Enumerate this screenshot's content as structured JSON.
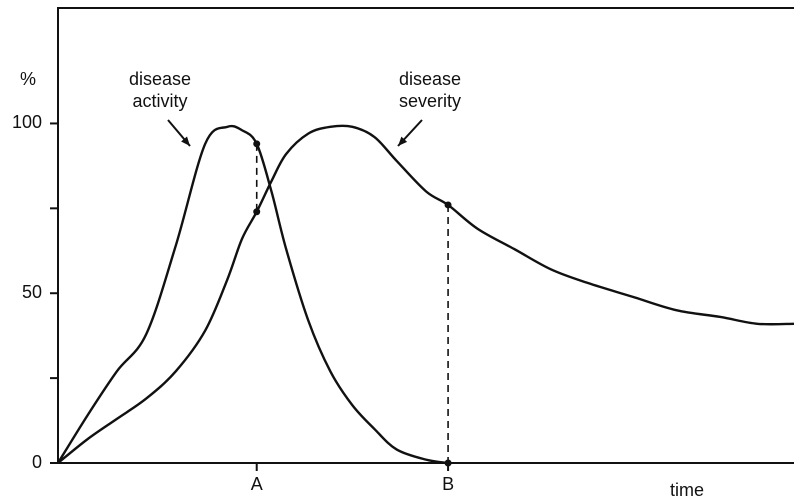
{
  "chart_data": {
    "type": "line",
    "y_label": "%",
    "x_label": "time",
    "x": [
      0,
      4,
      8,
      12,
      16,
      20,
      23,
      25,
      27,
      29,
      31,
      34,
      37,
      40,
      43,
      46,
      50,
      53,
      57,
      62,
      67,
      72,
      78,
      84,
      90,
      95,
      100
    ],
    "series": [
      {
        "name": "disease activity",
        "color": "#111111",
        "values": [
          0,
          14,
          27,
          38,
          64,
          94,
          99,
          98,
          94,
          80,
          63,
          42,
          27,
          17,
          10,
          4,
          1,
          0,
          null,
          null,
          null,
          null,
          null,
          null,
          null,
          null,
          null
        ]
      },
      {
        "name": "disease severity",
        "color": "#111111",
        "values": [
          0,
          7,
          13,
          19,
          27,
          39,
          54,
          66,
          74,
          83,
          91,
          97,
          99,
          99,
          96,
          89,
          80,
          76,
          69,
          63,
          57,
          53,
          49,
          45,
          43,
          41,
          41
        ]
      }
    ],
    "annotations": [
      {
        "lines": [
          "disease",
          "activity"
        ],
        "series": 0
      },
      {
        "lines": [
          "disease",
          "severity"
        ],
        "series": 1
      }
    ],
    "xlim": [
      0,
      100
    ],
    "xticks": [
      {
        "value": 27,
        "label": "A"
      },
      {
        "value": 53,
        "label": "B"
      }
    ],
    "ylim": [
      0,
      134
    ],
    "yticks": [
      0,
      50,
      100
    ],
    "yminorticks": [
      25,
      75
    ],
    "droplines": true
  }
}
